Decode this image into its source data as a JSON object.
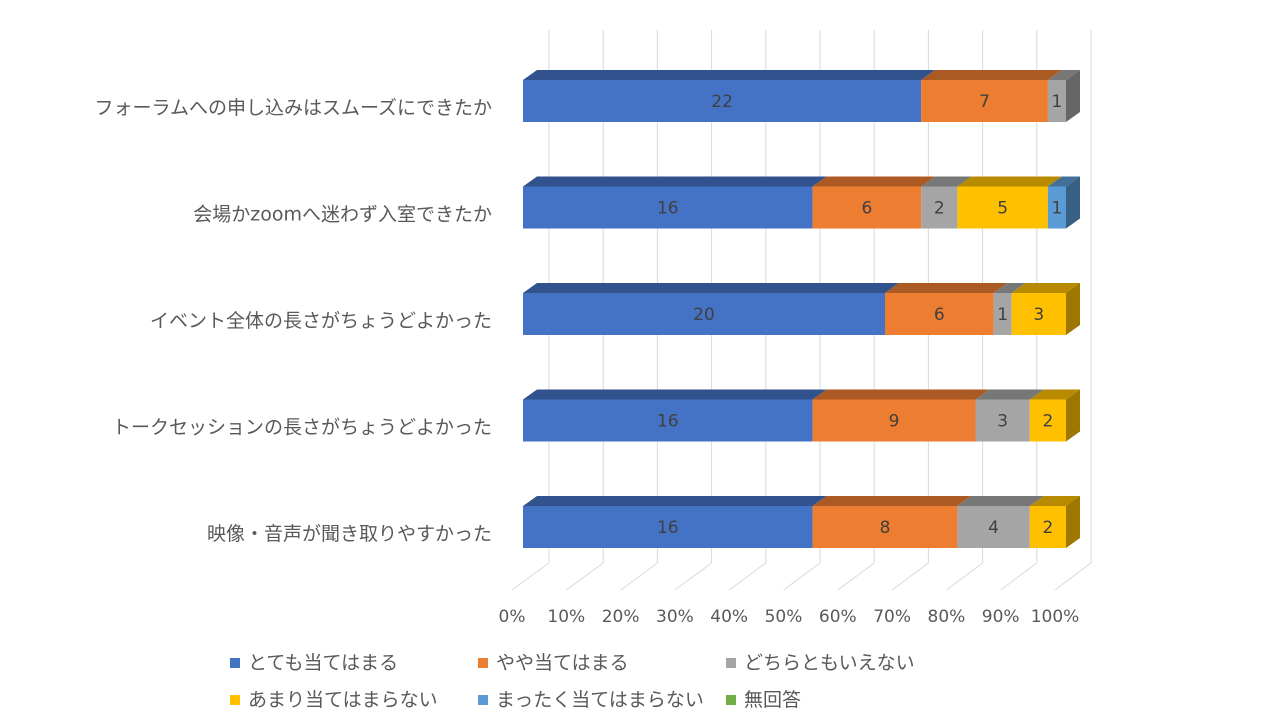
{
  "chart_data": {
    "type": "bar",
    "orientation": "horizontal",
    "stacked": "percent",
    "three_d": true,
    "categories": [
      "フォーラムへの申し込みはスムーズにできたか",
      "会場かzoomへ迷わず入室できたか",
      "イベント全体の長さがちょうどよかった",
      "トークセッションの長さがちょうどよかった",
      "映像・音声が聞き取りやすかった"
    ],
    "series": [
      {
        "name": "とても当てはまる",
        "color": "#4472C4",
        "values": [
          22,
          16,
          20,
          16,
          16
        ]
      },
      {
        "name": "やや当てはまる",
        "color": "#ED7D31",
        "values": [
          7,
          6,
          6,
          9,
          8
        ]
      },
      {
        "name": "どちらともいえない",
        "color": "#A5A5A5",
        "values": [
          1,
          2,
          1,
          3,
          4
        ]
      },
      {
        "name": "あまり当てはまらない",
        "color": "#FFC000",
        "values": [
          0,
          5,
          3,
          2,
          2
        ]
      },
      {
        "name": "まったく当てはまらない",
        "color": "#5B9BD5",
        "values": [
          0,
          1,
          0,
          0,
          0
        ]
      },
      {
        "name": "無回答",
        "color": "#70AD47",
        "values": [
          0,
          0,
          0,
          0,
          0
        ]
      }
    ],
    "xlim": [
      0,
      100
    ],
    "xticks": [
      "0%",
      "10%",
      "20%",
      "30%",
      "40%",
      "50%",
      "60%",
      "70%",
      "80%",
      "90%",
      "100%"
    ],
    "data_labels": true,
    "grid": true,
    "legend": "bottom"
  }
}
